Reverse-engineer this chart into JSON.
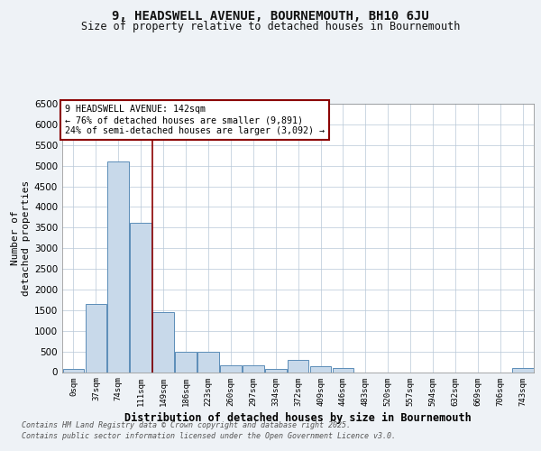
{
  "title_line1": "9, HEADSWELL AVENUE, BOURNEMOUTH, BH10 6JU",
  "title_line2": "Size of property relative to detached houses in Bournemouth",
  "xlabel": "Distribution of detached houses by size in Bournemouth",
  "ylabel": "Number of\ndetached properties",
  "categories": [
    "0sqm",
    "37sqm",
    "74sqm",
    "111sqm",
    "149sqm",
    "186sqm",
    "223sqm",
    "260sqm",
    "297sqm",
    "334sqm",
    "372sqm",
    "409sqm",
    "446sqm",
    "483sqm",
    "520sqm",
    "557sqm",
    "594sqm",
    "632sqm",
    "669sqm",
    "706sqm",
    "743sqm"
  ],
  "bar_values": [
    75,
    1650,
    5100,
    3625,
    1450,
    490,
    490,
    170,
    170,
    85,
    300,
    140,
    90,
    0,
    0,
    0,
    0,
    0,
    0,
    0,
    90
  ],
  "bar_color": "#c8d9ea",
  "bar_edge_color": "#5b8db8",
  "vline_x_index": 4,
  "vline_color": "#8b0000",
  "annotation_title": "9 HEADSWELL AVENUE: 142sqm",
  "annotation_line2": "← 76% of detached houses are smaller (9,891)",
  "annotation_line3": "24% of semi-detached houses are larger (3,092) →",
  "annotation_box_color": "#8b0000",
  "ylim": [
    0,
    6500
  ],
  "yticks": [
    0,
    500,
    1000,
    1500,
    2000,
    2500,
    3000,
    3500,
    4000,
    4500,
    5000,
    5500,
    6000,
    6500
  ],
  "footer_line1": "Contains HM Land Registry data © Crown copyright and database right 2025.",
  "footer_line2": "Contains public sector information licensed under the Open Government Licence v3.0.",
  "bg_color": "#eef2f6",
  "plot_bg_color": "#eef2f6",
  "inner_bg_color": "#ffffff"
}
